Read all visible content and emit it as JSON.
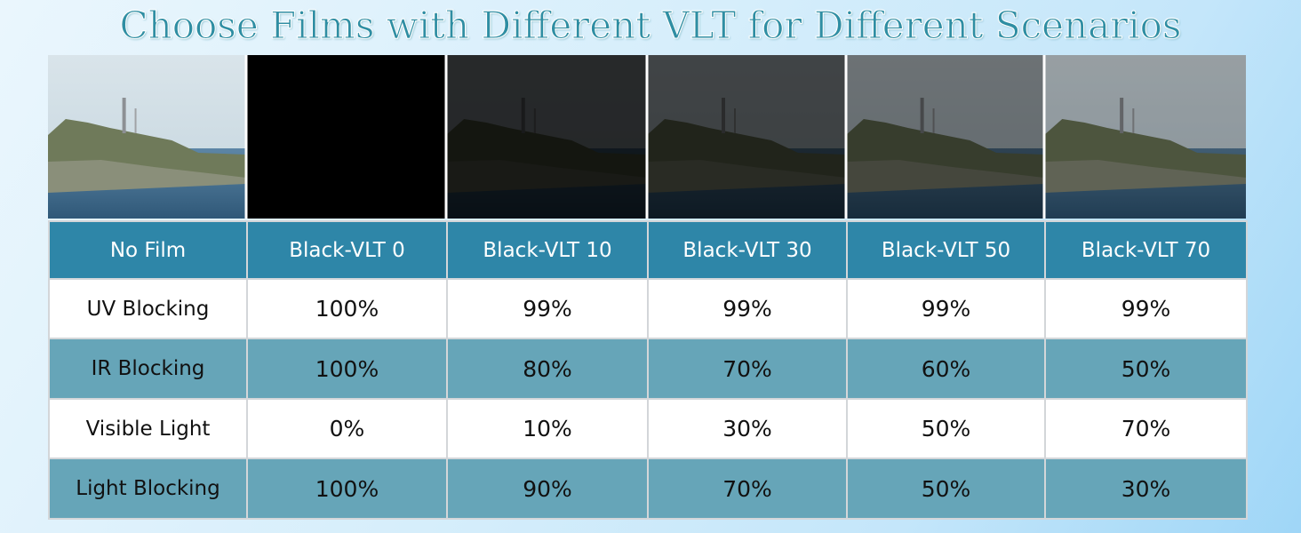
{
  "title": "Choose Films with Different VLT for Different Scenarios",
  "table": {
    "header": [
      "No Film",
      "Black-VLT 0",
      "Black-VLT 10",
      "Black-VLT 30",
      "Black-VLT 50",
      "Black-VLT 70"
    ],
    "rows": [
      [
        "UV Blocking",
        "100%",
        "99%",
        "99%",
        "99%",
        "99%"
      ],
      [
        "IR Blocking",
        "100%",
        "80%",
        "70%",
        "60%",
        "50%"
      ],
      [
        "Visible Light",
        "0%",
        "10%",
        "30%",
        "50%",
        "70%"
      ],
      [
        "Light Blocking",
        "100%",
        "90%",
        "70%",
        "50%",
        "30%"
      ]
    ]
  }
}
